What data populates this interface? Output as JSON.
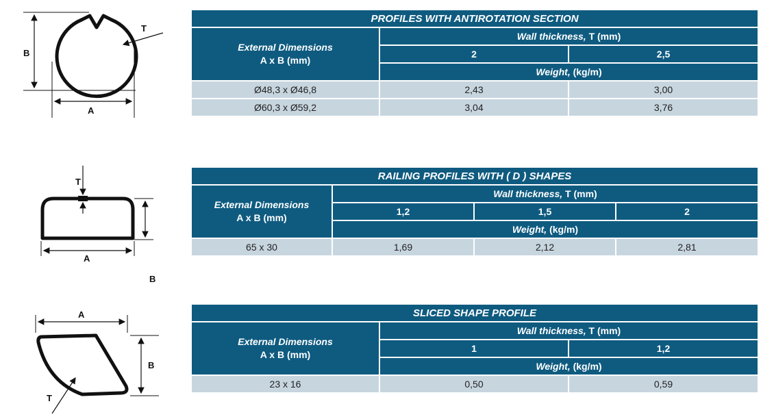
{
  "diagrams": {
    "antirotation": {
      "label_b": "B",
      "label_a": "A",
      "label_t": "T"
    },
    "d_shape": {
      "label_t": "T",
      "label_a": "A"
    },
    "sliced": {
      "label_a": "A",
      "label_b": "B",
      "label_t": "T"
    }
  },
  "stray_label": "B",
  "tables": {
    "antirotation": {
      "title": "PROFILES WITH ANTIROTATION SECTION",
      "ext_line1": "External Dimensions",
      "ext_line2": "A x B (mm)",
      "wall_italic": "Wall thickness,",
      "wall_rest": " T (mm)",
      "thicknesses": [
        "2",
        "2,5"
      ],
      "weight_italic": "Weight,",
      "weight_rest": " (kg/m)",
      "rows": [
        {
          "dim": "Ø48,3 x Ø46,8",
          "values": [
            "2,43",
            "3,00"
          ]
        },
        {
          "dim": "Ø60,3 x Ø59,2",
          "values": [
            "3,04",
            "3,76"
          ]
        }
      ]
    },
    "d_shape": {
      "title": "RAILING PROFILES WITH ( D ) SHAPES",
      "ext_line1": "External Dimensions",
      "ext_line2": "A x B (mm)",
      "wall_italic": "Wall thickness,",
      "wall_rest": " T (mm)",
      "thicknesses": [
        "1,2",
        "1,5",
        "2"
      ],
      "weight_italic": "Weight,",
      "weight_rest": " (kg/m)",
      "rows": [
        {
          "dim": "65 x 30",
          "values": [
            "1,69",
            "2,12",
            "2,81"
          ]
        }
      ]
    },
    "sliced": {
      "title": "SLICED SHAPE PROFILE",
      "ext_line1": "External Dimensions",
      "ext_line2": "A x B (mm)",
      "wall_italic": "Wall thickness,",
      "wall_rest": " T (mm)",
      "thicknesses": [
        "1",
        "1,2"
      ],
      "weight_italic": "Weight,",
      "weight_rest": " (kg/m)",
      "rows": [
        {
          "dim": "23 x 16",
          "values": [
            "0,50",
            "0,59"
          ]
        }
      ]
    }
  },
  "colors": {
    "header": "#0f5b80",
    "row": "#c7d5df"
  }
}
